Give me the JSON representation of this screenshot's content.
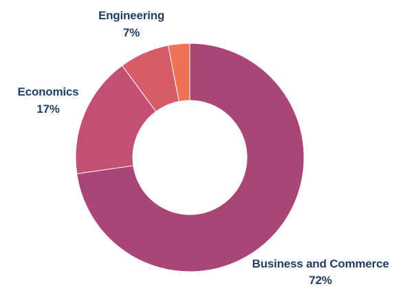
{
  "chart_data": {
    "type": "pie",
    "donut": true,
    "title": "",
    "categories": [
      "Business and Commerce",
      "Economics",
      "Engineering",
      ""
    ],
    "values": [
      72,
      17,
      7,
      3
    ],
    "labels": [
      {
        "name": "Business and Commerce",
        "value_text": "72%"
      },
      {
        "name": "Economics",
        "value_text": "17%"
      },
      {
        "name": "Engineering",
        "value_text": "7%"
      }
    ],
    "colors": [
      "#a94677",
      "#c44f73",
      "#d85b6a",
      "#ee7158"
    ],
    "label_color": "#1f3f66",
    "legend": "none"
  }
}
